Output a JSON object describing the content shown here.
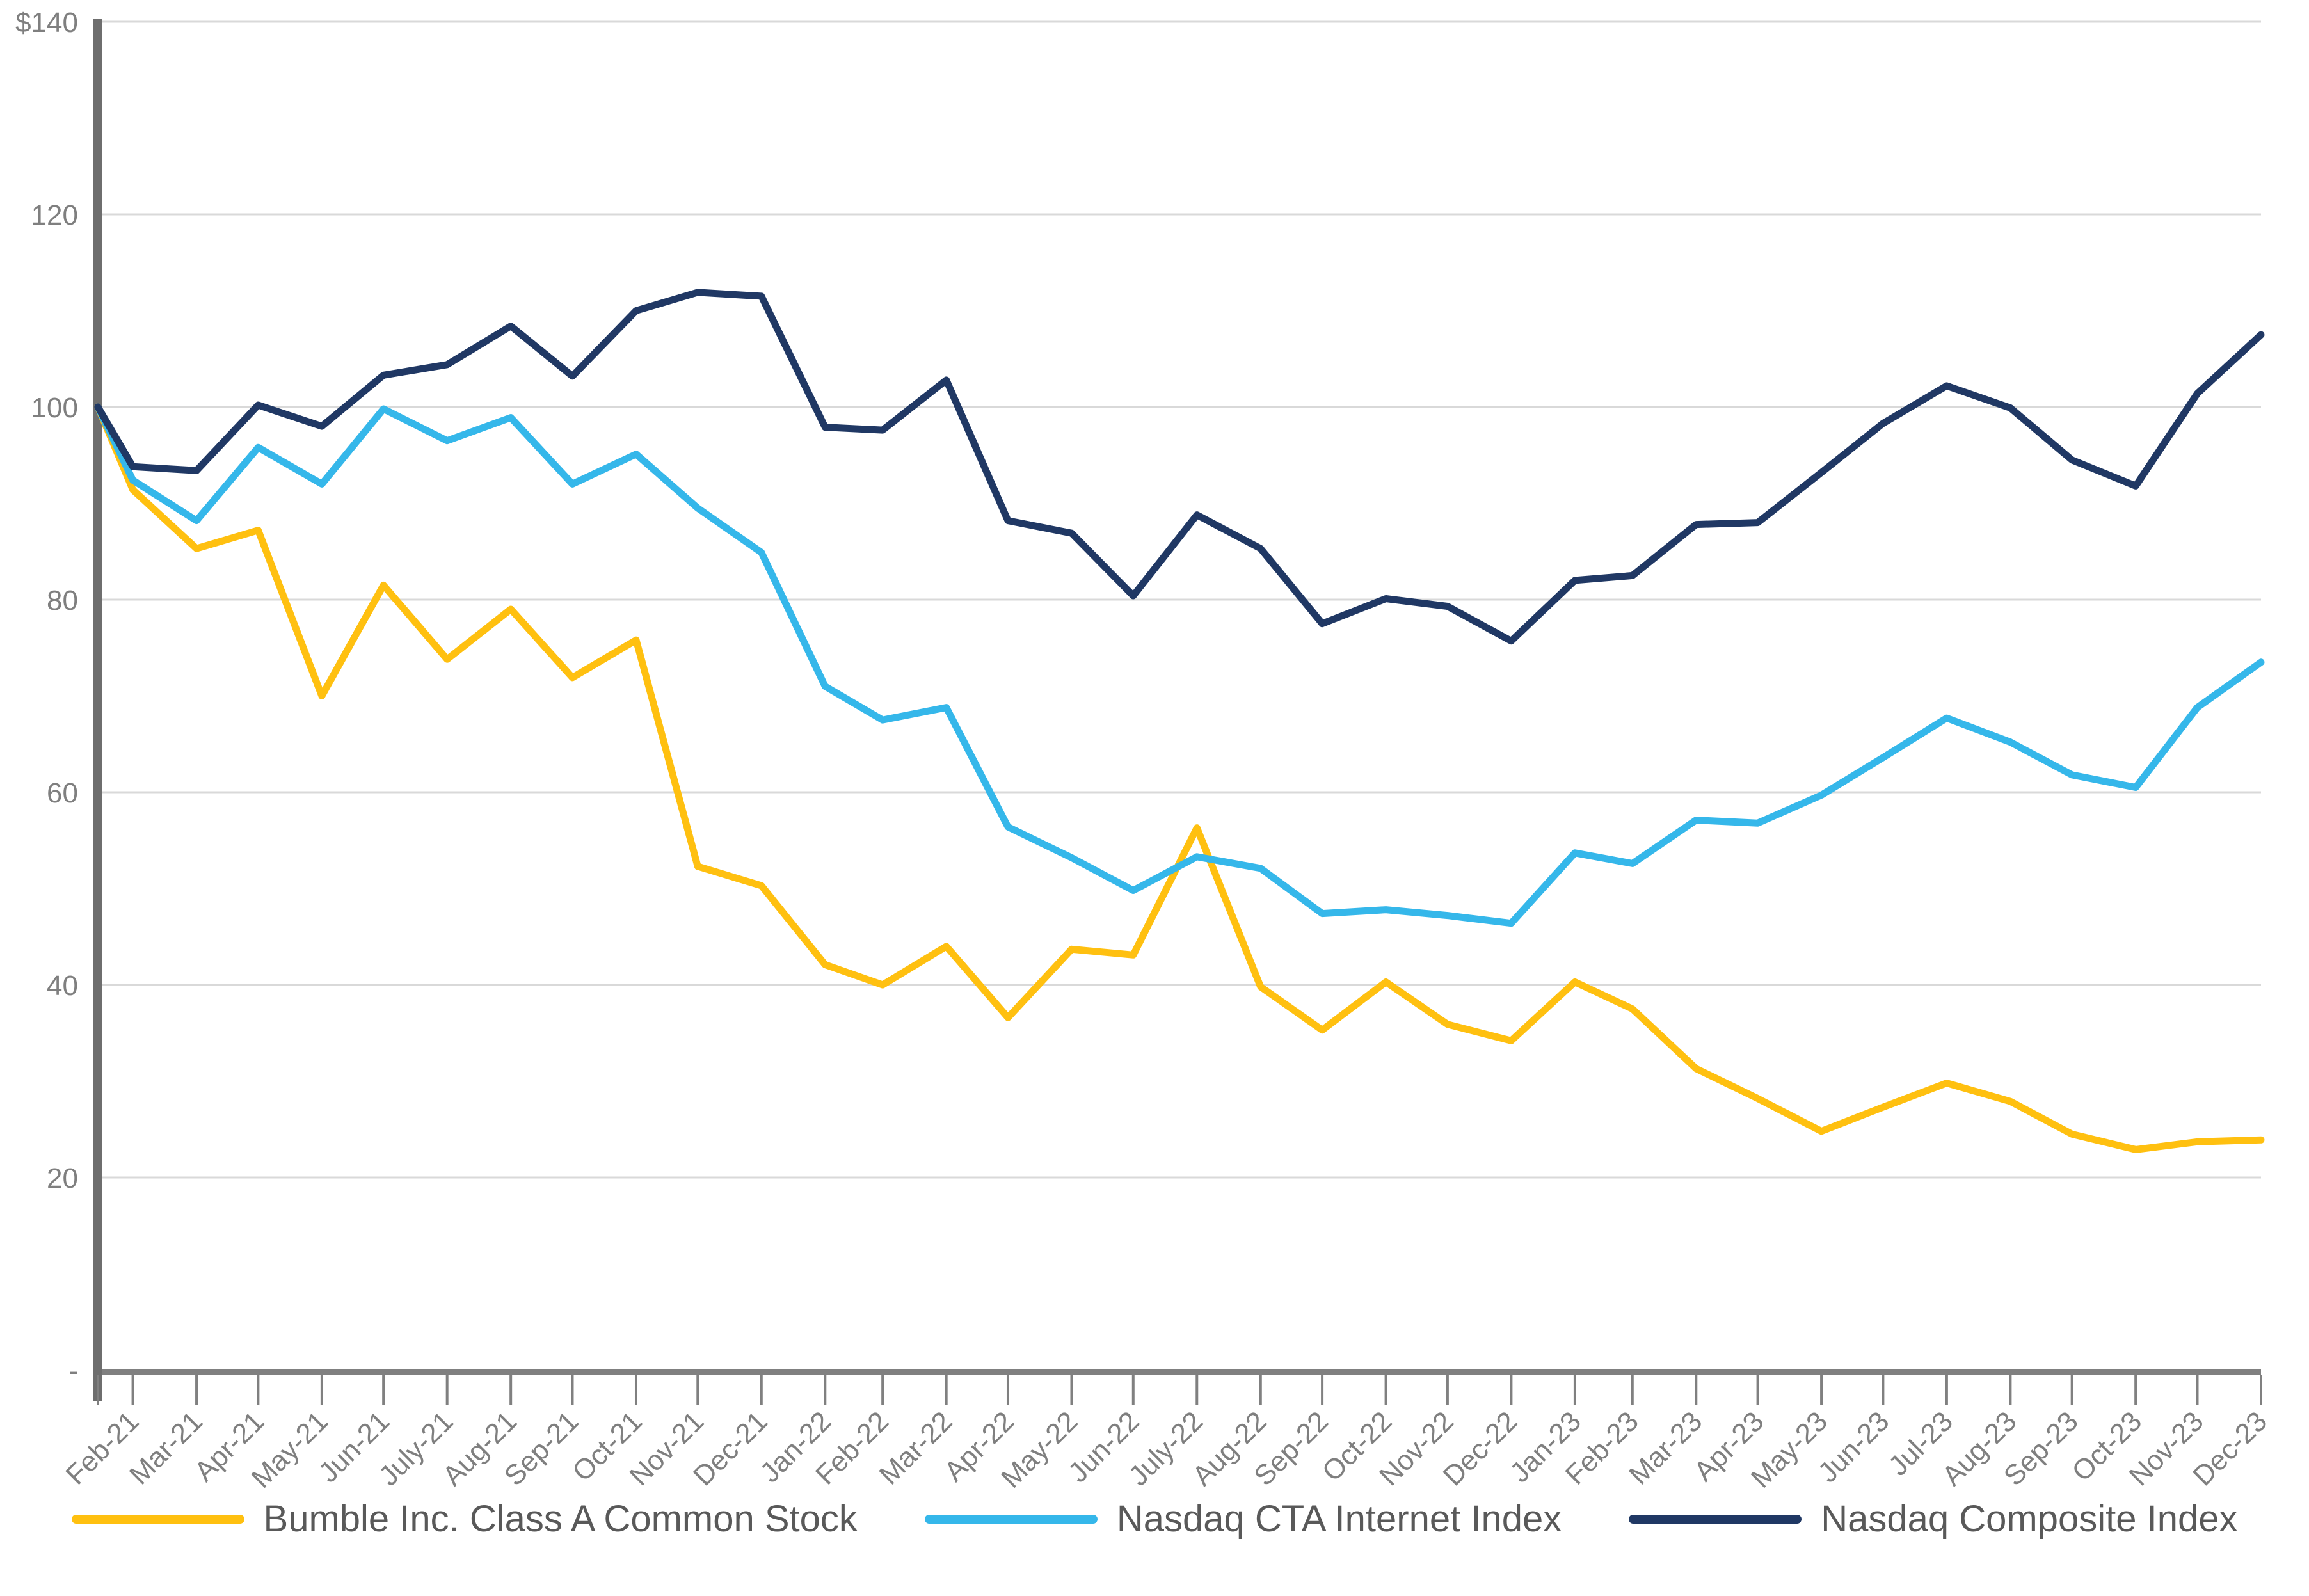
{
  "chart_data": {
    "type": "line",
    "title": "",
    "xlabel": "",
    "ylabel": "",
    "y_axis_prefix_on_top_tick": "$",
    "y_ticks": [
      {
        "label": "$140",
        "value": 140
      },
      {
        "label": "120",
        "value": 120
      },
      {
        "label": "100",
        "value": 100
      },
      {
        "label": "80",
        "value": 80
      },
      {
        "label": "60",
        "value": 60
      },
      {
        "label": "40",
        "value": 40
      },
      {
        "label": "20",
        "value": 20
      },
      {
        "label": "-",
        "value": 0
      }
    ],
    "ylim": [
      0,
      140
    ],
    "grid": "horizontal",
    "legend_position": "bottom",
    "x_axis_type": "date-monthly",
    "note_first_point": "unlabeled series start point on the y-axis (investment date, value 100)",
    "categories": [
      "Feb-21",
      "Mar-21",
      "Apr-21",
      "May-21",
      "Jun-21",
      "July-21",
      "Aug-21",
      "Sep-21",
      "Oct-21",
      "Nov-21",
      "Dec-21",
      "Jan-22",
      "Feb-22",
      "Mar-22",
      "Apr-22",
      "May-22",
      "Jun-22",
      "July-22",
      "Aug-22",
      "Sep-22",
      "Oct-22",
      "Nov-22",
      "Dec-22",
      "Jan-23",
      "Feb-23",
      "Mar-23",
      "Apr-23",
      "May-23",
      "Jun-23",
      "Jul-23",
      "Aug-23",
      "Sep-23",
      "Oct-23",
      "Nov-23",
      "Dec-23"
    ],
    "x_days": [
      0,
      17,
      48,
      78,
      109,
      139,
      170,
      201,
      231,
      262,
      292,
      323,
      354,
      382,
      413,
      443,
      474,
      504,
      535,
      566,
      596,
      627,
      657,
      688,
      719,
      747,
      778,
      808,
      839,
      869,
      900,
      931,
      961,
      992,
      1022,
      1053
    ],
    "series": [
      {
        "name": "Bumble Inc. Class A Common Stock",
        "color": "#FFC010",
        "values": [
          100,
          91.4,
          85.3,
          87.2,
          70.0,
          81.5,
          73.8,
          79.0,
          71.9,
          75.8,
          52.3,
          50.3,
          42.1,
          40.0,
          44.0,
          36.6,
          43.7,
          43.1,
          56.3,
          39.8,
          35.3,
          40.3,
          35.9,
          34.2,
          40.3,
          37.5,
          31.3,
          28.2,
          24.8,
          27.3,
          29.8,
          27.9,
          24.5,
          22.9,
          23.7,
          23.9
        ]
      },
      {
        "name": "Nasdaq CTA Internet Index",
        "color": "#35B7EA",
        "values": [
          100,
          92.4,
          88.2,
          95.8,
          92.0,
          99.8,
          96.5,
          98.9,
          92.0,
          95.1,
          89.5,
          84.9,
          71.0,
          67.5,
          68.8,
          56.4,
          53.2,
          49.8,
          53.3,
          52.1,
          47.4,
          47.8,
          47.2,
          46.4,
          53.7,
          52.6,
          57.1,
          56.8,
          59.7,
          63.6,
          67.7,
          65.2,
          61.8,
          60.5,
          68.8,
          73.5
        ]
      },
      {
        "name": "Nasdaq Composite Index",
        "color": "#203864",
        "values": [
          100,
          93.8,
          93.4,
          100.2,
          98.0,
          103.3,
          104.4,
          108.4,
          103.2,
          110.0,
          111.9,
          111.5,
          97.9,
          97.6,
          102.8,
          88.2,
          86.9,
          80.4,
          88.8,
          85.3,
          77.5,
          80.1,
          79.3,
          75.7,
          82.0,
          82.5,
          87.8,
          88.0,
          93.2,
          98.3,
          102.2,
          99.9,
          94.5,
          91.8,
          101.4,
          107.5
        ]
      }
    ],
    "style": {
      "line_width": 11,
      "gridline_color": "#D9D9D9",
      "axis_line_color": "#808080",
      "y_axis_bar_color": "#6E6E6E",
      "tick_label_color": "#7F7F7F",
      "legend_text_color": "#595959",
      "background": "#FFFFFF"
    }
  }
}
